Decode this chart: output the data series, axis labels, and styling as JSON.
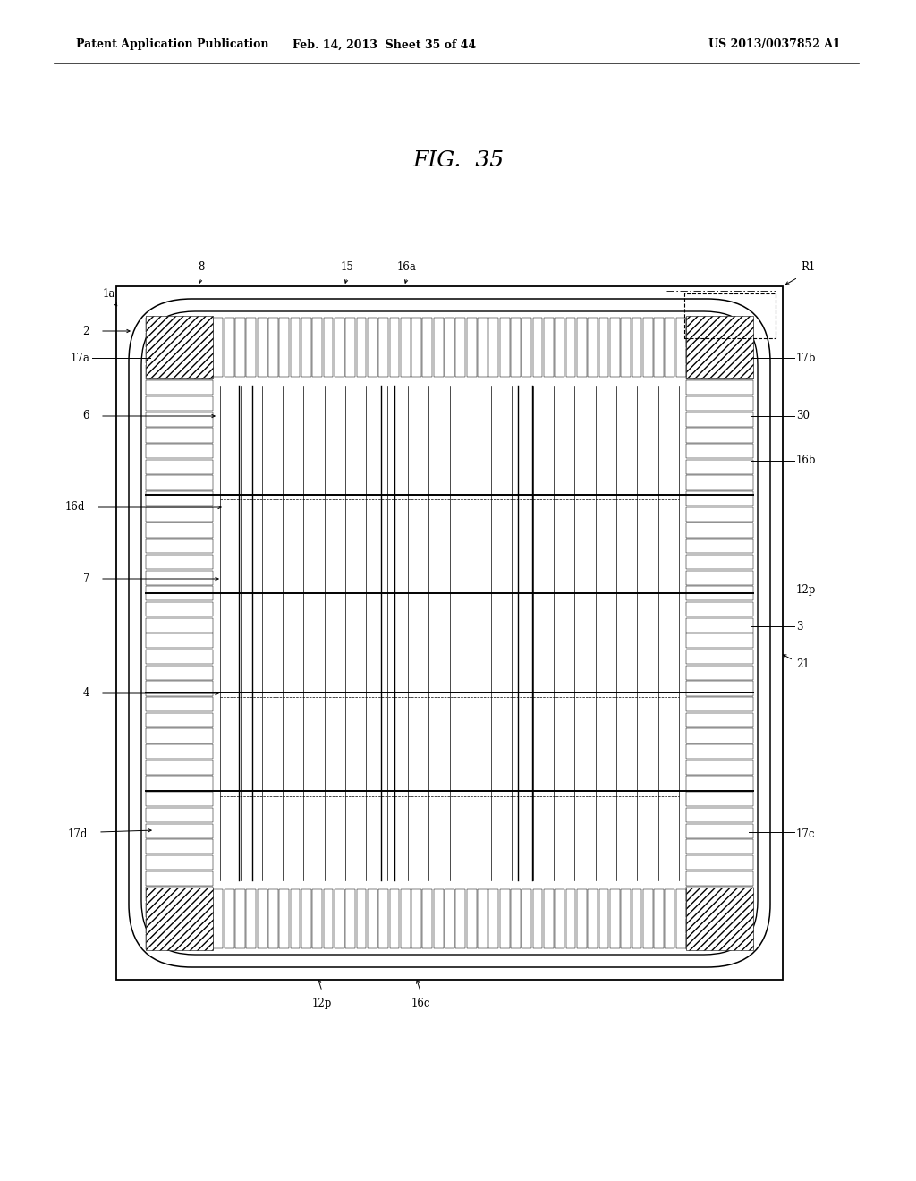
{
  "title": "FIG.  35",
  "header_left": "Patent Application Publication",
  "header_center": "Feb. 14, 2013  Sheet 35 of 44",
  "header_right": "US 2013/0037852 A1",
  "bg_color": "#ffffff",
  "lw_outer": 1.2,
  "lw_inner": 1.0,
  "lw_thin": 0.5,
  "fs_label": 8.5,
  "fs_title": 18,
  "fs_header": 9
}
